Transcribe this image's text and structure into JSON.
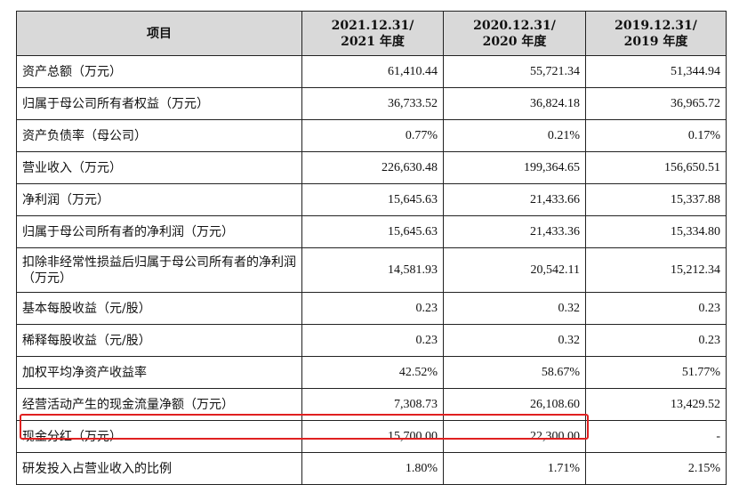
{
  "table": {
    "headers": [
      {
        "line1": "项目",
        "line2": ""
      },
      {
        "line1": "2021.12.31/",
        "line2": "2021 年度"
      },
      {
        "line1": "2020.12.31/",
        "line2": "2020 年度"
      },
      {
        "line1": "2019.12.31/",
        "line2": "2019 年度"
      }
    ],
    "rows": [
      {
        "label": "资产总额（万元）",
        "v2021": "61,410.44",
        "v2020": "55,721.34",
        "v2019": "51,344.94"
      },
      {
        "label": "归属于母公司所有者权益（万元）",
        "v2021": "36,733.52",
        "v2020": "36,824.18",
        "v2019": "36,965.72"
      },
      {
        "label": "资产负债率（母公司）",
        "v2021": "0.77%",
        "v2020": "0.21%",
        "v2019": "0.17%"
      },
      {
        "label": "营业收入（万元）",
        "v2021": "226,630.48",
        "v2020": "199,364.65",
        "v2019": "156,650.51"
      },
      {
        "label": "净利润（万元）",
        "v2021": "15,645.63",
        "v2020": "21,433.66",
        "v2019": "15,337.88"
      },
      {
        "label": "归属于母公司所有者的净利润（万元）",
        "v2021": "15,645.63",
        "v2020": "21,433.36",
        "v2019": "15,334.80"
      },
      {
        "label": "扣除非经常性损益后归属于母公司所有者的净利润（万元）",
        "v2021": "14,581.93",
        "v2020": "20,542.11",
        "v2019": "15,212.34"
      },
      {
        "label": "基本每股收益（元/股）",
        "v2021": "0.23",
        "v2020": "0.32",
        "v2019": "0.23"
      },
      {
        "label": "稀释每股收益（元/股）",
        "v2021": "0.23",
        "v2020": "0.32",
        "v2019": "0.23"
      },
      {
        "label": "加权平均净资产收益率",
        "v2021": "42.52%",
        "v2020": "58.67%",
        "v2019": "51.77%"
      },
      {
        "label": "经营活动产生的现金流量净额（万元）",
        "v2021": "7,308.73",
        "v2020": "26,108.60",
        "v2019": "13,429.52"
      },
      {
        "label": "现金分红（万元）",
        "v2021": "15,700.00",
        "v2020": "22,300.00",
        "v2019": "-"
      },
      {
        "label": "研发投入占营业收入的比例",
        "v2021": "1.80%",
        "v2020": "1.71%",
        "v2019": "2.15%"
      }
    ]
  },
  "highlight": {
    "row_label": "现金分红（万元）",
    "color": "#e02020"
  },
  "colors": {
    "header_bg": "#d9d9d9",
    "border": "#222222"
  }
}
